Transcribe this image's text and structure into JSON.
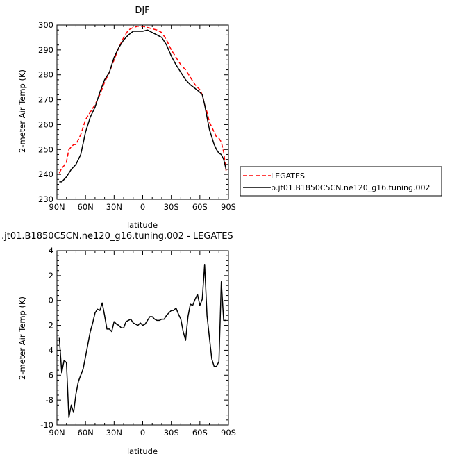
{
  "chart_data": [
    {
      "type": "line",
      "title": "DJF",
      "xlabel": "latitude",
      "ylabel": "2-meter Air Temp (K)",
      "xticks": [
        "90N",
        "60N",
        "30N",
        "0",
        "30S",
        "60S",
        "90S"
      ],
      "yticks": [
        "230",
        "240",
        "250",
        "260",
        "270",
        "280",
        "290",
        "300"
      ],
      "xlim": [
        90,
        -90
      ],
      "ylim": [
        230,
        300
      ],
      "grid": false,
      "legend_position": "right, outside plot",
      "series": [
        {
          "name": "LEGATES",
          "color": "#ff0000",
          "style": "dashed",
          "x": [
            87.5,
            85,
            82.5,
            80,
            77.5,
            75,
            72.5,
            70,
            65,
            60,
            55,
            50,
            45,
            40,
            35,
            30,
            25,
            20,
            15,
            10,
            5,
            0,
            -5,
            -10,
            -15,
            -20,
            -25,
            -30,
            -35,
            -40,
            -45,
            -50,
            -55,
            -60,
            -62.5,
            -65,
            -67.5,
            -70,
            -75,
            -77.5,
            -80,
            -82.5,
            -85,
            -87.5
          ],
          "values": [
            240.5,
            242.5,
            243.5,
            245,
            250,
            251,
            252,
            252,
            256,
            262,
            265,
            268,
            272,
            277,
            281,
            286,
            291,
            295,
            298,
            299,
            299.5,
            299.5,
            299,
            298.5,
            298,
            297,
            294,
            290,
            287,
            284,
            282,
            279,
            276,
            274,
            272,
            268,
            265,
            261,
            257,
            255,
            254.5,
            253,
            249,
            241.5
          ]
        },
        {
          "name": "b.jt01.B1850C5CN.ne120_g16.tuning.002",
          "color": "#000000",
          "style": "solid",
          "x": [
            87.5,
            85,
            82.5,
            80,
            77.5,
            75,
            72.5,
            70,
            65,
            60,
            55,
            50,
            45,
            40,
            35,
            30,
            25,
            20,
            15,
            10,
            5,
            0,
            -5,
            -10,
            -15,
            -20,
            -25,
            -30,
            -35,
            -40,
            -45,
            -50,
            -55,
            -60,
            -62.5,
            -65,
            -67.5,
            -70,
            -75,
            -77.5,
            -80,
            -82.5,
            -85,
            -87.5
          ],
          "values": [
            237,
            237,
            238,
            239,
            240.5,
            242,
            243,
            244,
            248,
            257,
            263,
            267,
            273,
            278,
            281,
            287,
            291,
            294,
            296,
            297.5,
            297.5,
            297.5,
            298,
            297,
            296,
            295,
            292,
            287.5,
            284,
            281,
            278,
            276,
            274.5,
            273,
            272,
            268,
            263,
            258,
            252,
            250,
            248.5,
            248,
            246,
            242
          ]
        }
      ]
    },
    {
      "type": "line",
      "title": ".jt01.B1850C5CN.ne120_g16.tuning.002 - LEGATES",
      "xlabel": "latitude",
      "ylabel": "2-meter Air Temp (K)",
      "xticks": [
        "90N",
        "60N",
        "30N",
        "0",
        "30S",
        "60S",
        "90S"
      ],
      "yticks": [
        "-10",
        "-8",
        "-6",
        "-4",
        "-2",
        "0",
        "2",
        "4"
      ],
      "xlim": [
        90,
        -90
      ],
      "ylim": [
        -10,
        4
      ],
      "grid": false,
      "series": [
        {
          "color": "#000000",
          "style": "solid",
          "x": [
            87.5,
            85,
            82.5,
            80,
            77.5,
            75,
            72.5,
            70,
            67.5,
            65,
            62.5,
            60,
            57.5,
            55,
            52.5,
            50,
            47.5,
            45,
            42.5,
            40,
            37.5,
            35,
            32.5,
            30,
            27.5,
            25,
            22.5,
            20,
            17.5,
            15,
            12.5,
            10,
            7.5,
            5,
            2.5,
            0,
            -2.5,
            -5,
            -7.5,
            -10,
            -12.5,
            -15,
            -17.5,
            -20,
            -22.5,
            -25,
            -27.5,
            -30,
            -32.5,
            -35,
            -37.5,
            -40,
            -42.5,
            -45,
            -47.5,
            -50,
            -52.5,
            -55,
            -57.5,
            -60,
            -62.5,
            -65,
            -67.5,
            -70,
            -72.5,
            -75,
            -77.5,
            -80,
            -82.5,
            -85,
            -87.5
          ],
          "values": [
            -3,
            -5.8,
            -4.8,
            -5,
            -9.4,
            -8.4,
            -9,
            -7.5,
            -6.5,
            -6,
            -5.5,
            -4.5,
            -3.5,
            -2.5,
            -1.8,
            -1,
            -0.7,
            -0.8,
            -0.2,
            -1.2,
            -2.3,
            -2.3,
            -2.5,
            -1.7,
            -1.9,
            -2,
            -2.2,
            -2.2,
            -1.7,
            -1.6,
            -1.5,
            -1.8,
            -1.9,
            -2,
            -1.8,
            -2,
            -1.9,
            -1.6,
            -1.3,
            -1.3,
            -1.5,
            -1.6,
            -1.6,
            -1.5,
            -1.5,
            -1.2,
            -1,
            -0.8,
            -0.8,
            -0.6,
            -1.1,
            -1.5,
            -2.5,
            -3.2,
            -1.3,
            -0.3,
            -0.4,
            0.1,
            0.5,
            -0.4,
            0.1,
            2.9,
            -1.2,
            -3,
            -4.7,
            -5.3,
            -5.3,
            -4.9,
            1.5,
            -1.6,
            -1.6
          ]
        }
      ]
    }
  ]
}
